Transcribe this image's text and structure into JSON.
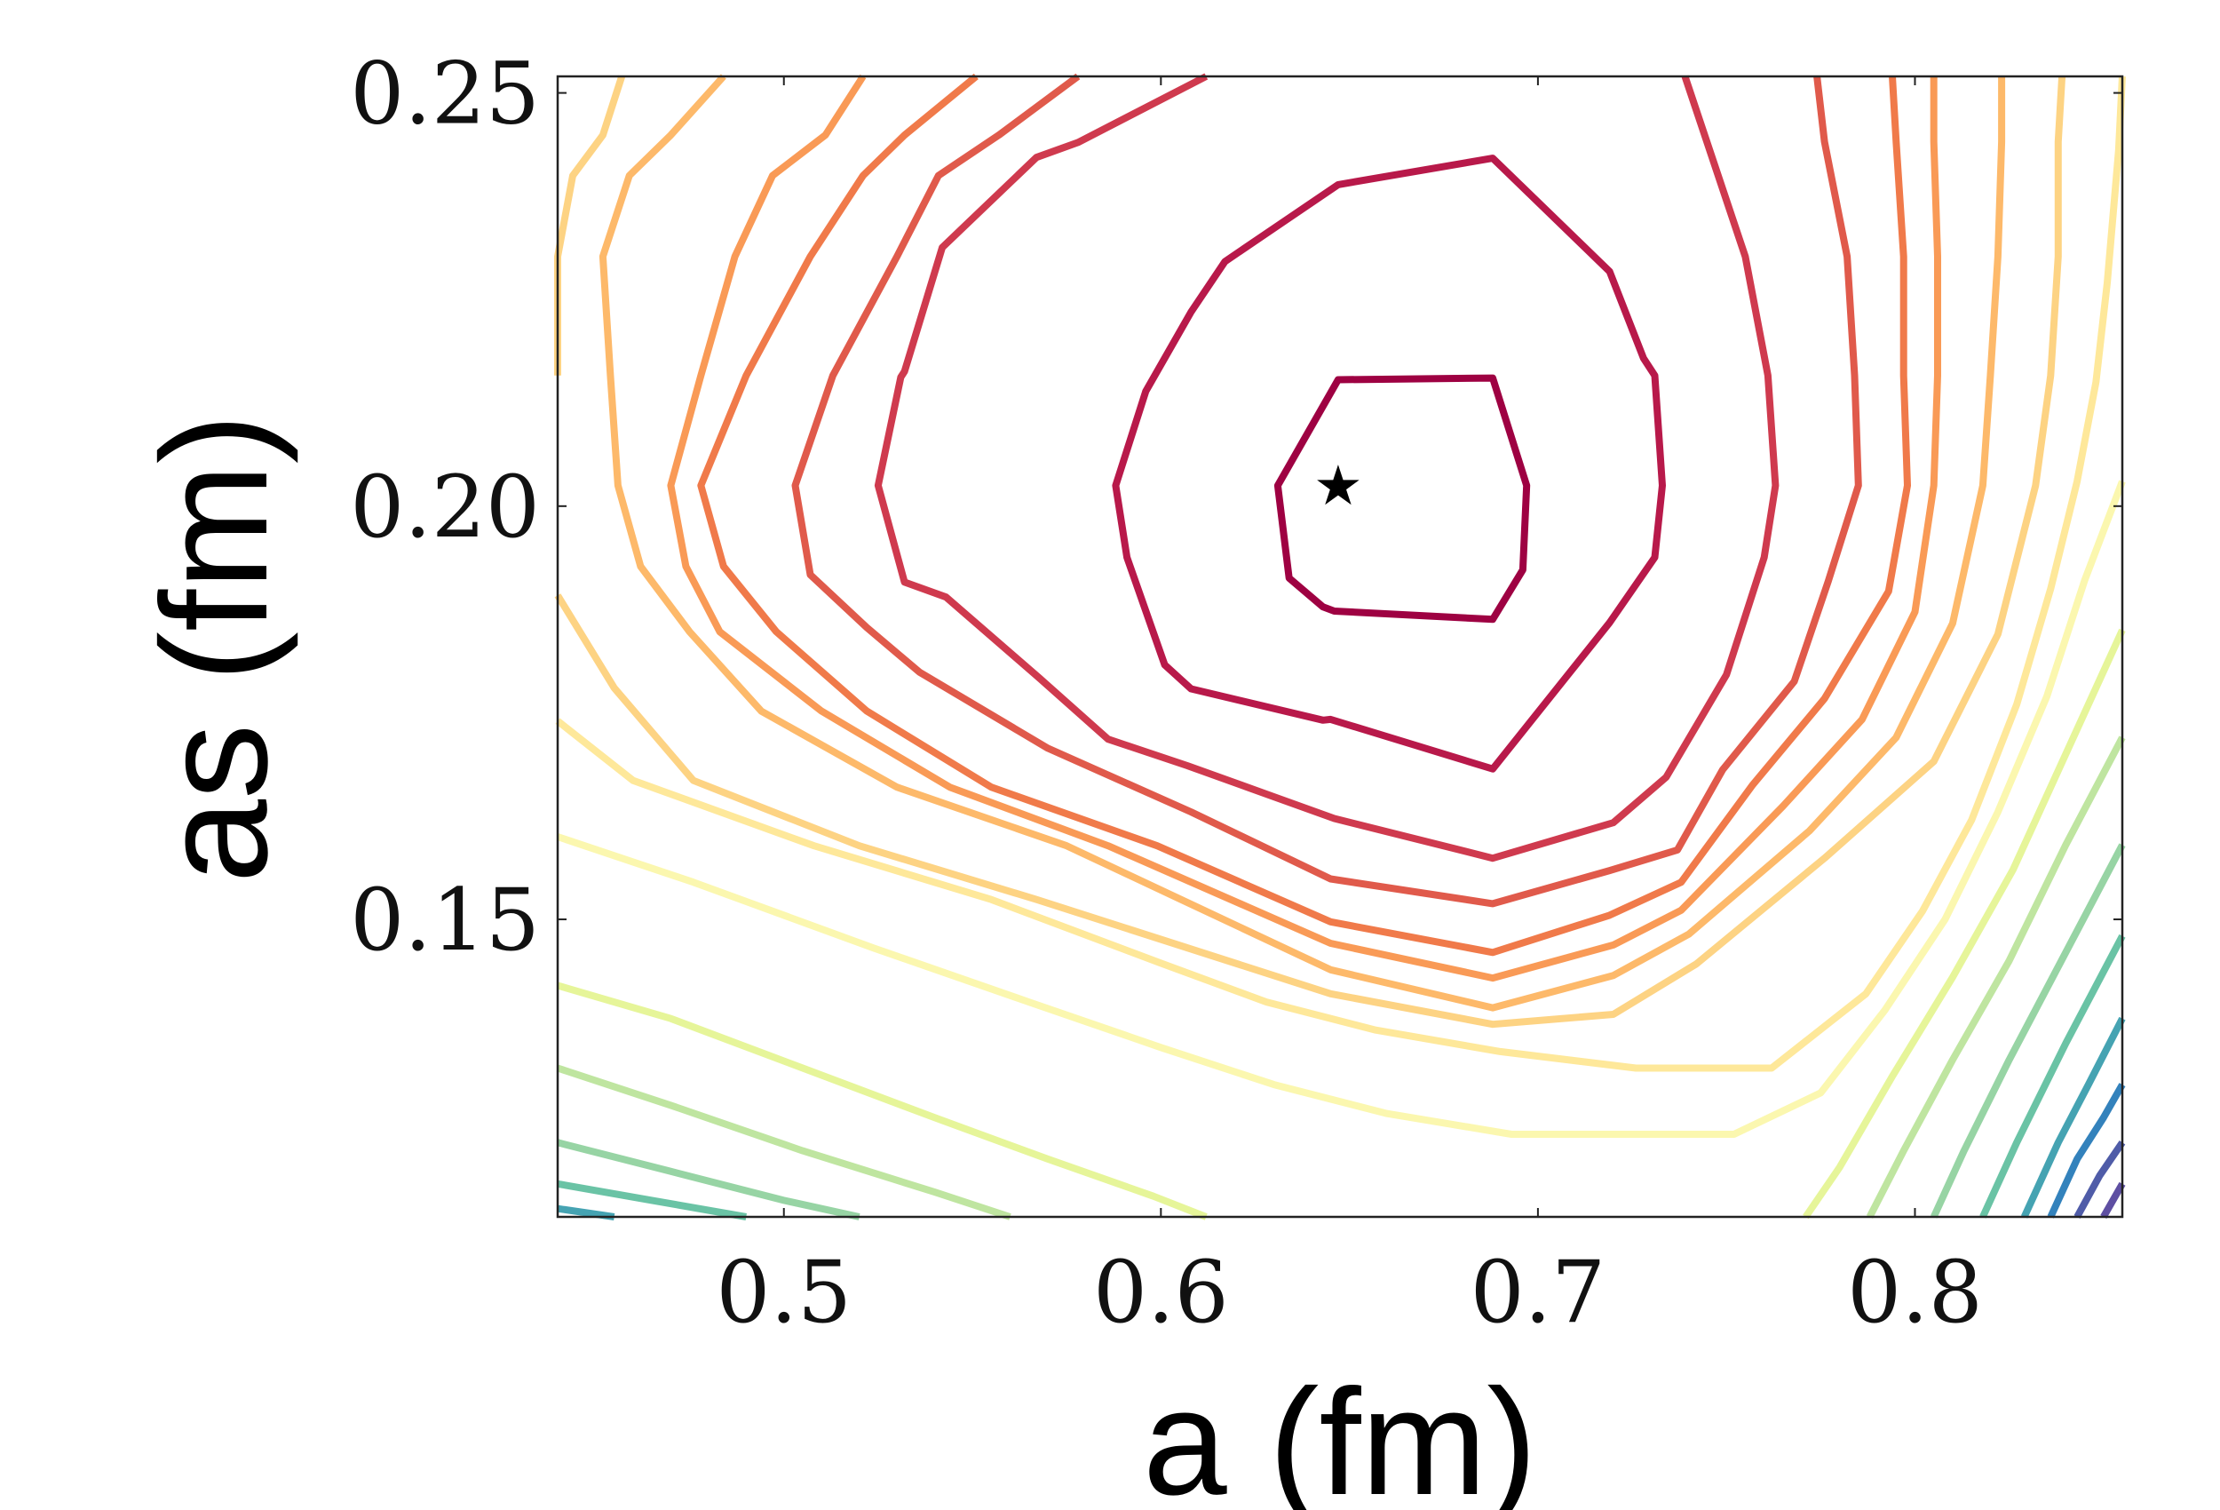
{
  "chart_data": {
    "type": "contour",
    "xlabel": "a (fm)",
    "ylabel": "as (fm)",
    "xlim": [
      0.44,
      0.855
    ],
    "ylim": [
      0.114,
      0.252
    ],
    "xticks": [
      {
        "value": 0.5,
        "label": "0.5"
      },
      {
        "value": 0.6,
        "label": "0.6"
      },
      {
        "value": 0.7,
        "label": "0.7"
      },
      {
        "value": 0.8,
        "label": "0.8"
      }
    ],
    "yticks": [
      {
        "value": 0.15,
        "label": "0.15"
      },
      {
        "value": 0.2,
        "label": "0.20"
      },
      {
        "value": 0.25,
        "label": "0.25"
      }
    ],
    "minimum_marker": {
      "symbol": "★",
      "x": 0.647,
      "y": 0.2025,
      "color": "#000000"
    },
    "colormap": "Spectral",
    "levels": [
      {
        "color": "#9e0142",
        "points": [
          [
            0.647,
            0.2153
          ],
          [
            0.688,
            0.2155
          ],
          [
            0.697,
            0.2025
          ],
          [
            0.696,
            0.1923
          ],
          [
            0.688,
            0.1863
          ],
          [
            0.646,
            0.1873
          ],
          [
            0.643,
            0.1878
          ],
          [
            0.634,
            0.1913
          ],
          [
            0.631,
            0.2025
          ],
          [
            0.647,
            0.2153
          ]
        ],
        "closed": true
      },
      {
        "color": "#b8194a",
        "points": [
          [
            0.647,
            0.2389
          ],
          [
            0.688,
            0.2421
          ],
          [
            0.719,
            0.2284
          ],
          [
            0.728,
            0.2179
          ],
          [
            0.731,
            0.2158
          ],
          [
            0.733,
            0.2025
          ],
          [
            0.731,
            0.1938
          ],
          [
            0.719,
            0.1859
          ],
          [
            0.688,
            0.1682
          ],
          [
            0.645,
            0.1742
          ],
          [
            0.643,
            0.1741
          ],
          [
            0.608,
            0.1779
          ],
          [
            0.601,
            0.1808
          ],
          [
            0.591,
            0.1938
          ],
          [
            0.588,
            0.2025
          ],
          [
            0.596,
            0.2139
          ],
          [
            0.608,
            0.2235
          ],
          [
            0.617,
            0.2296
          ],
          [
            0.647,
            0.2389
          ]
        ],
        "closed": true
      },
      {
        "color": "#cf3a4e",
        "points": [
          [
            0.612,
            0.252
          ],
          [
            0.578,
            0.244
          ],
          [
            0.567,
            0.2422
          ],
          [
            0.542,
            0.2313
          ],
          [
            0.532,
            0.2163
          ],
          [
            0.531,
            0.2156
          ],
          [
            0.525,
            0.2025
          ],
          [
            0.532,
            0.1908
          ],
          [
            0.543,
            0.189
          ],
          [
            0.568,
            0.1791
          ],
          [
            0.586,
            0.1718
          ],
          [
            0.607,
            0.1686
          ],
          [
            0.646,
            0.1622
          ],
          [
            0.688,
            0.1574
          ],
          [
            0.72,
            0.1617
          ],
          [
            0.734,
            0.1672
          ],
          [
            0.75,
            0.1796
          ],
          [
            0.76,
            0.1938
          ],
          [
            0.763,
            0.2025
          ],
          [
            0.761,
            0.2158
          ],
          [
            0.755,
            0.2302
          ],
          [
            0.739,
            0.252
          ]
        ],
        "closed": false
      },
      {
        "color": "#e05a4b",
        "points": [
          [
            0.578,
            0.252
          ],
          [
            0.557,
            0.2449
          ],
          [
            0.541,
            0.24
          ],
          [
            0.53,
            0.2302
          ],
          [
            0.513,
            0.2158
          ],
          [
            0.503,
            0.2025
          ],
          [
            0.507,
            0.1917
          ],
          [
            0.522,
            0.1853
          ],
          [
            0.536,
            0.1799
          ],
          [
            0.57,
            0.1707
          ],
          [
            0.608,
            0.163
          ],
          [
            0.645,
            0.1549
          ],
          [
            0.688,
            0.1519
          ],
          [
            0.719,
            0.1559
          ],
          [
            0.737,
            0.1584
          ],
          [
            0.749,
            0.1681
          ],
          [
            0.768,
            0.1788
          ],
          [
            0.777,
            0.1909
          ],
          [
            0.785,
            0.2025
          ],
          [
            0.784,
            0.2158
          ],
          [
            0.782,
            0.2302
          ],
          [
            0.776,
            0.2441
          ],
          [
            0.774,
            0.252
          ]
        ],
        "closed": false
      },
      {
        "color": "#f07a4a",
        "points": [
          [
            0.551,
            0.252
          ],
          [
            0.532,
            0.2449
          ],
          [
            0.521,
            0.24
          ],
          [
            0.507,
            0.2302
          ],
          [
            0.49,
            0.2158
          ],
          [
            0.478,
            0.2025
          ],
          [
            0.484,
            0.1927
          ],
          [
            0.498,
            0.1848
          ],
          [
            0.522,
            0.1752
          ],
          [
            0.555,
            0.166
          ],
          [
            0.599,
            0.1589
          ],
          [
            0.645,
            0.1497
          ],
          [
            0.688,
            0.146
          ],
          [
            0.719,
            0.1505
          ],
          [
            0.738,
            0.1545
          ],
          [
            0.757,
            0.1663
          ],
          [
            0.776,
            0.1767
          ],
          [
            0.793,
            0.1897
          ],
          [
            0.798,
            0.2025
          ],
          [
            0.797,
            0.2158
          ],
          [
            0.797,
            0.2302
          ],
          [
            0.795,
            0.2441
          ],
          [
            0.794,
            0.252
          ]
        ],
        "closed": false
      },
      {
        "color": "#f99a56",
        "points": [
          [
            0.521,
            0.252
          ],
          [
            0.511,
            0.2449
          ],
          [
            0.497,
            0.24
          ],
          [
            0.487,
            0.2302
          ],
          [
            0.478,
            0.2158
          ],
          [
            0.47,
            0.2025
          ],
          [
            0.474,
            0.1927
          ],
          [
            0.483,
            0.1848
          ],
          [
            0.51,
            0.1752
          ],
          [
            0.544,
            0.166
          ],
          [
            0.586,
            0.1589
          ],
          [
            0.645,
            0.1471
          ],
          [
            0.688,
            0.1429
          ],
          [
            0.72,
            0.1469
          ],
          [
            0.738,
            0.1511
          ],
          [
            0.765,
            0.1637
          ],
          [
            0.786,
            0.1742
          ],
          [
            0.8,
            0.1872
          ],
          [
            0.805,
            0.2025
          ],
          [
            0.806,
            0.2158
          ],
          [
            0.806,
            0.2302
          ],
          [
            0.805,
            0.2441
          ],
          [
            0.805,
            0.252
          ]
        ],
        "closed": false
      },
      {
        "color": "#fdb96a",
        "points": [
          [
            0.484,
            0.252
          ],
          [
            0.47,
            0.2449
          ],
          [
            0.459,
            0.24
          ],
          [
            0.452,
            0.2302
          ],
          [
            0.454,
            0.2158
          ],
          [
            0.456,
            0.2025
          ],
          [
            0.462,
            0.1927
          ],
          [
            0.475,
            0.1848
          ],
          [
            0.494,
            0.1752
          ],
          [
            0.53,
            0.166
          ],
          [
            0.575,
            0.1589
          ],
          [
            0.645,
            0.1439
          ],
          [
            0.688,
            0.1393
          ],
          [
            0.72,
            0.1432
          ],
          [
            0.74,
            0.1482
          ],
          [
            0.772,
            0.1607
          ],
          [
            0.795,
            0.172
          ],
          [
            0.81,
            0.1858
          ],
          [
            0.818,
            0.2025
          ],
          [
            0.82,
            0.2158
          ],
          [
            0.822,
            0.2302
          ],
          [
            0.823,
            0.2441
          ],
          [
            0.823,
            0.252
          ]
        ],
        "closed": false
      },
      {
        "color": "#fdd383",
        "points": [
          [
            0.457,
            0.252
          ],
          [
            0.452,
            0.2449
          ],
          [
            0.444,
            0.24
          ],
          [
            0.44,
            0.2302
          ],
          [
            0.44,
            0.2158
          ]
        ],
        "closed": false
      },
      {
        "color": "#fdd383",
        "points": [
          [
            0.44,
            0.1892
          ],
          [
            0.455,
            0.178
          ],
          [
            0.476,
            0.1668
          ],
          [
            0.52,
            0.1589
          ],
          [
            0.567,
            0.1524
          ],
          [
            0.645,
            0.141
          ],
          [
            0.688,
            0.1373
          ],
          [
            0.72,
            0.1385
          ],
          [
            0.742,
            0.1446
          ],
          [
            0.776,
            0.1574
          ],
          [
            0.805,
            0.1691
          ],
          [
            0.822,
            0.1845
          ],
          [
            0.832,
            0.2025
          ],
          [
            0.836,
            0.2158
          ],
          [
            0.838,
            0.2302
          ],
          [
            0.838,
            0.2441
          ],
          [
            0.839,
            0.252
          ]
        ],
        "closed": false
      },
      {
        "color": "#fee89a",
        "points": [
          [
            0.44,
            0.174
          ],
          [
            0.46,
            0.1668
          ],
          [
            0.508,
            0.1589
          ],
          [
            0.555,
            0.1524
          ],
          [
            0.6,
            0.1447
          ],
          [
            0.628,
            0.14
          ],
          [
            0.657,
            0.1366
          ],
          [
            0.69,
            0.134
          ],
          [
            0.726,
            0.132
          ],
          [
            0.762,
            0.132
          ],
          [
            0.787,
            0.141
          ],
          [
            0.802,
            0.151
          ],
          [
            0.815,
            0.162
          ],
          [
            0.827,
            0.176
          ],
          [
            0.836,
            0.19
          ],
          [
            0.843,
            0.203
          ],
          [
            0.848,
            0.215
          ],
          [
            0.851,
            0.227
          ],
          [
            0.854,
            0.243
          ],
          [
            0.855,
            0.252
          ]
        ],
        "closed": false
      },
      {
        "color": "#fbf7af",
        "points": [
          [
            0.44,
            0.16
          ],
          [
            0.476,
            0.1545
          ],
          [
            0.524,
            0.1465
          ],
          [
            0.565,
            0.14
          ],
          [
            0.6,
            0.1345
          ],
          [
            0.63,
            0.13
          ],
          [
            0.66,
            0.1265
          ],
          [
            0.693,
            0.124
          ],
          [
            0.725,
            0.124
          ],
          [
            0.752,
            0.124
          ],
          [
            0.775,
            0.129
          ],
          [
            0.792,
            0.139
          ],
          [
            0.808,
            0.15
          ],
          [
            0.822,
            0.163
          ],
          [
            0.835,
            0.177
          ],
          [
            0.845,
            0.191
          ],
          [
            0.855,
            0.203
          ]
        ],
        "closed": false
      },
      {
        "color": "#e6f599",
        "points": [
          [
            0.44,
            0.142
          ],
          [
            0.47,
            0.138
          ],
          [
            0.505,
            0.132
          ],
          [
            0.54,
            0.126
          ],
          [
            0.57,
            0.121
          ],
          [
            0.598,
            0.1165
          ],
          [
            0.612,
            0.114
          ]
        ],
        "closed": false
      },
      {
        "color": "#e6f599",
        "points": [
          [
            0.771,
            0.114
          ],
          [
            0.78,
            0.12
          ],
          [
            0.794,
            0.131
          ],
          [
            0.81,
            0.143
          ],
          [
            0.826,
            0.156
          ],
          [
            0.84,
            0.17
          ],
          [
            0.855,
            0.185
          ]
        ],
        "closed": false
      },
      {
        "color": "#bfe5a0",
        "points": [
          [
            0.44,
            0.132
          ],
          [
            0.47,
            0.1275
          ],
          [
            0.505,
            0.122
          ],
          [
            0.54,
            0.117
          ],
          [
            0.56,
            0.114
          ]
        ],
        "closed": false
      },
      {
        "color": "#bfe5a0",
        "points": [
          [
            0.788,
            0.114
          ],
          [
            0.797,
            0.122
          ],
          [
            0.81,
            0.133
          ],
          [
            0.825,
            0.145
          ],
          [
            0.84,
            0.159
          ],
          [
            0.855,
            0.172
          ]
        ],
        "closed": false
      },
      {
        "color": "#97d4a4",
        "points": [
          [
            0.44,
            0.123
          ],
          [
            0.47,
            0.1195
          ],
          [
            0.5,
            0.116
          ],
          [
            0.52,
            0.114
          ]
        ],
        "closed": false
      },
      {
        "color": "#97d4a4",
        "points": [
          [
            0.805,
            0.114
          ],
          [
            0.813,
            0.122
          ],
          [
            0.825,
            0.133
          ],
          [
            0.84,
            0.146
          ],
          [
            0.855,
            0.159
          ]
        ],
        "closed": false
      },
      {
        "color": "#6ac3a5",
        "points": [
          [
            0.44,
            0.118
          ],
          [
            0.465,
            0.116
          ],
          [
            0.49,
            0.114
          ]
        ],
        "closed": false
      },
      {
        "color": "#6ac3a5",
        "points": [
          [
            0.818,
            0.114
          ],
          [
            0.827,
            0.123
          ],
          [
            0.84,
            0.135
          ],
          [
            0.855,
            0.148
          ]
        ],
        "closed": false
      },
      {
        "color": "#45a3b2",
        "points": [
          [
            0.44,
            0.115
          ],
          [
            0.455,
            0.114
          ]
        ],
        "closed": false
      },
      {
        "color": "#45a3b2",
        "points": [
          [
            0.829,
            0.114
          ],
          [
            0.838,
            0.123
          ],
          [
            0.846,
            0.13
          ],
          [
            0.855,
            0.138
          ]
        ],
        "closed": false
      },
      {
        "color": "#3382bc",
        "points": [
          [
            0.836,
            0.114
          ],
          [
            0.843,
            0.121
          ],
          [
            0.85,
            0.126
          ],
          [
            0.855,
            0.13
          ]
        ],
        "closed": false
      },
      {
        "color": "#4f5ca8",
        "points": [
          [
            0.843,
            0.114
          ],
          [
            0.849,
            0.119
          ],
          [
            0.855,
            0.123
          ]
        ],
        "closed": false
      },
      {
        "color": "#5e4fa2",
        "points": [
          [
            0.85,
            0.114
          ],
          [
            0.855,
            0.118
          ]
        ],
        "closed": false
      }
    ]
  }
}
